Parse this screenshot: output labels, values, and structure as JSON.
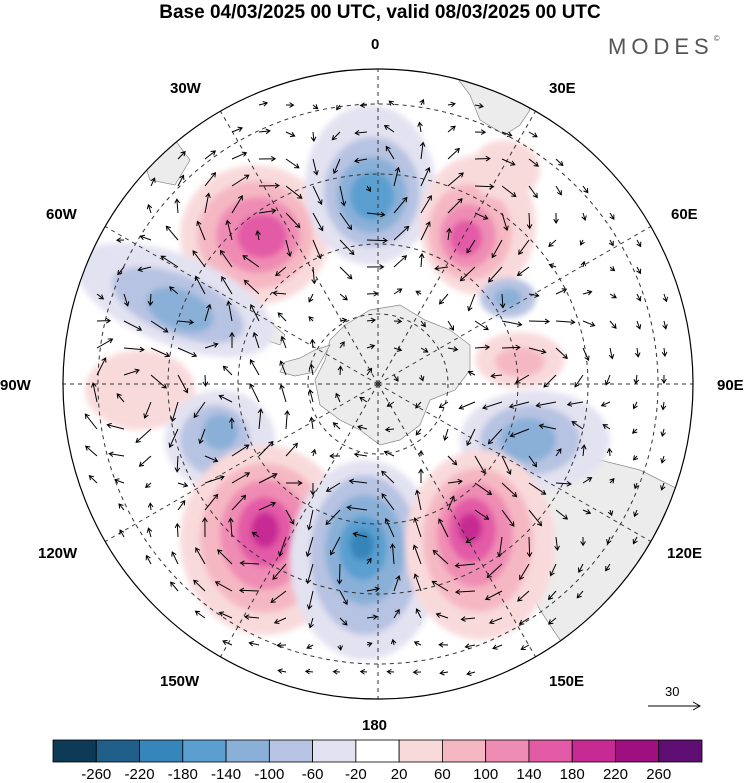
{
  "title": "Base 04/03/2025 00 UTC, valid 08/03/2025 00 UTC",
  "brand": "MODES",
  "brand_mark": "©",
  "longitude_labels": {
    "lon_0": "0",
    "lon_30e": "30E",
    "lon_60e": "60E",
    "lon_90e": "90E",
    "lon_120e": "120E",
    "lon_150e": "150E",
    "lon_180": "180",
    "lon_150w": "150W",
    "lon_120w": "120W",
    "lon_90w": "90W",
    "lon_60w": "60W",
    "lon_30w": "30W"
  },
  "reference_vector_label": "30",
  "colorbar": {
    "labels": [
      "-260",
      "-220",
      "-180",
      "-140",
      "-100",
      "-60",
      "-20",
      "20",
      "60",
      "100",
      "140",
      "180",
      "220",
      "260"
    ],
    "colors": [
      "#0d3a55",
      "#1f5f8a",
      "#3685bb",
      "#5a9fd0",
      "#8ab0d8",
      "#b7c3e2",
      "#e3e2f1",
      "#ffffff",
      "#f9dadb",
      "#f5b8c3",
      "#ef8cb4",
      "#e35aa6",
      "#c82a94",
      "#9e0f80",
      "#5f0e73"
    ]
  },
  "anomaly_colors": {
    "land": "#ececec",
    "pos_light": "#f9dadb",
    "pos_mid": "#f5b8c3",
    "pos_strong": "#ef8cb4",
    "pos_core": "#e35aa6",
    "pos_peak": "#c82a94",
    "neg_light": "#e3e2f1",
    "neg_mid": "#b7c3e2",
    "neg_strong": "#8ab0d8",
    "neg_core": "#5a9fd0",
    "neg_peak": "#3685bb"
  }
}
